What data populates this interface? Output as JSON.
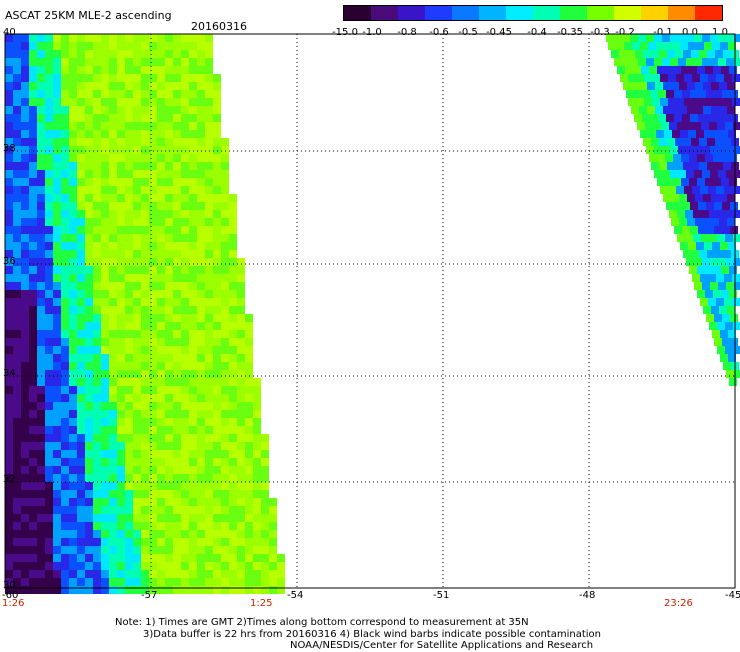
{
  "header": {
    "title": "ASCAT 25KM MLE-2 ascending",
    "date": "20160316"
  },
  "colorbar": {
    "labels": [
      "-15.0",
      "-1.0",
      "-0.8",
      "-0.6",
      "-0.5",
      "-0.45",
      "-0.4",
      "-0.35",
      "-0.3",
      "-0.2",
      "-0.1",
      "0.0",
      "1.0"
    ],
    "colors": [
      "#2a0030",
      "#4a0a7a",
      "#3a14c8",
      "#1e3cff",
      "#0a78ff",
      "#00b4ff",
      "#00ecff",
      "#00ffb4",
      "#20ff3c",
      "#78ff00",
      "#d2ff00",
      "#ffd200",
      "#ff8c00",
      "#ff2800"
    ]
  },
  "map": {
    "lon_ticks": [
      "-60",
      "-57",
      "-54",
      "-51",
      "-48",
      "-45"
    ],
    "lat_ticks": [
      "40",
      "38",
      "36",
      "34",
      "32",
      "30"
    ],
    "times": {
      "left_start": "1:26",
      "left_end": "1:25",
      "right": "23:26"
    }
  },
  "notes": {
    "line1": "Note: 1) Times are GMT 2)Times along bottom correspond to measurement at 35N",
    "line2": "3)Data buffer is 22 hrs from 20160316 4) Black wind barbs indicate possible contamination",
    "line3": "NOAA/NESDIS/Center for Satellite Applications and Research"
  }
}
